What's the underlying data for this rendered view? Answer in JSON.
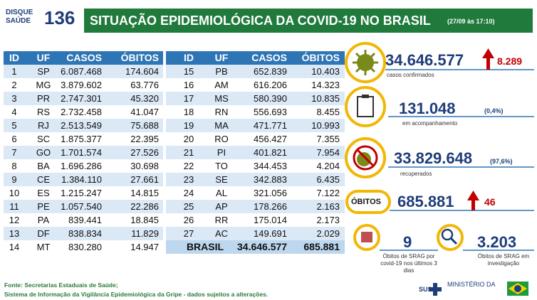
{
  "logo": {
    "line1": "DISQUE",
    "line2": "SAÚDE",
    "number": "136"
  },
  "header": {
    "title": "SITUAÇÃO EPIDEMIOLÓGICA DA COVID-19 NO BRASIL",
    "timestamp": "(27/09 às 17:10)"
  },
  "tables": [
    {
      "columns": [
        "ID",
        "UF",
        "CASOS",
        "ÓBITOS"
      ],
      "rows": [
        [
          "1",
          "SP",
          "6.087.468",
          "174.604"
        ],
        [
          "2",
          "MG",
          "3.879.602",
          "63.776"
        ],
        [
          "3",
          "PR",
          "2.747.301",
          "45.320"
        ],
        [
          "4",
          "RS",
          "2.732.458",
          "41.047"
        ],
        [
          "5",
          "RJ",
          "2.513.549",
          "75.688"
        ],
        [
          "6",
          "SC",
          "1.875.377",
          "22.395"
        ],
        [
          "7",
          "GO",
          "1.701.574",
          "27.526"
        ],
        [
          "8",
          "BA",
          "1.696.286",
          "30.698"
        ],
        [
          "9",
          "CE",
          "1.384.110",
          "27.661"
        ],
        [
          "10",
          "ES",
          "1.215.247",
          "14.815"
        ],
        [
          "11",
          "PE",
          "1.057.540",
          "22.286"
        ],
        [
          "12",
          "PA",
          "839.441",
          "18.845"
        ],
        [
          "13",
          "DF",
          "838.834",
          "11.829"
        ],
        [
          "14",
          "MT",
          "830.280",
          "14.947"
        ]
      ]
    },
    {
      "columns": [
        "ID",
        "UF",
        "CASOS",
        "ÓBITOS"
      ],
      "rows": [
        [
          "15",
          "PB",
          "652.839",
          "10.403"
        ],
        [
          "16",
          "AM",
          "616.206",
          "14.323"
        ],
        [
          "17",
          "MS",
          "580.390",
          "10.835"
        ],
        [
          "18",
          "RN",
          "556.693",
          "8.455"
        ],
        [
          "19",
          "MA",
          "471.771",
          "10.993"
        ],
        [
          "20",
          "RO",
          "456.427",
          "7.355"
        ],
        [
          "21",
          "PI",
          "401.821",
          "7.954"
        ],
        [
          "22",
          "TO",
          "344.453",
          "4.204"
        ],
        [
          "23",
          "SE",
          "342.883",
          "6.435"
        ],
        [
          "24",
          "AL",
          "321.056",
          "7.122"
        ],
        [
          "25",
          "AP",
          "178.266",
          "2.163"
        ],
        [
          "26",
          "RR",
          "175.014",
          "2.173"
        ],
        [
          "27",
          "AC",
          "149.691",
          "2.029"
        ]
      ],
      "total": [
        "BRASIL",
        "34.646.577",
        "685.881"
      ]
    }
  ],
  "stats": {
    "cases": {
      "value": "34.646.577",
      "delta": "8.289",
      "label": "casos confirmados"
    },
    "monitoring": {
      "value": "131.048",
      "percent": "(0,4%)",
      "label": "em acompanhamento"
    },
    "recovered": {
      "value": "33.829.648",
      "percent": "(97,6%)",
      "label": "recuperados"
    },
    "deaths": {
      "label": "ÓBITOS",
      "value": "685.881",
      "delta": "46"
    },
    "srag_recent": {
      "value": "9",
      "label": "Óbitos de SRAG por covid-19 nos últimos 3 dias"
    },
    "srag_investigation": {
      "value": "3.203",
      "label": "Óbitos de SRAG em investigação"
    }
  },
  "footer": {
    "line1": "Fonte: Secretarias Estaduais de Saúde;",
    "line2": "Sistema de Informação da Vigilância Epidemiológica da Gripe - dados sujeitos a alterações.",
    "ministry": "MINISTÉRIO DA"
  }
}
